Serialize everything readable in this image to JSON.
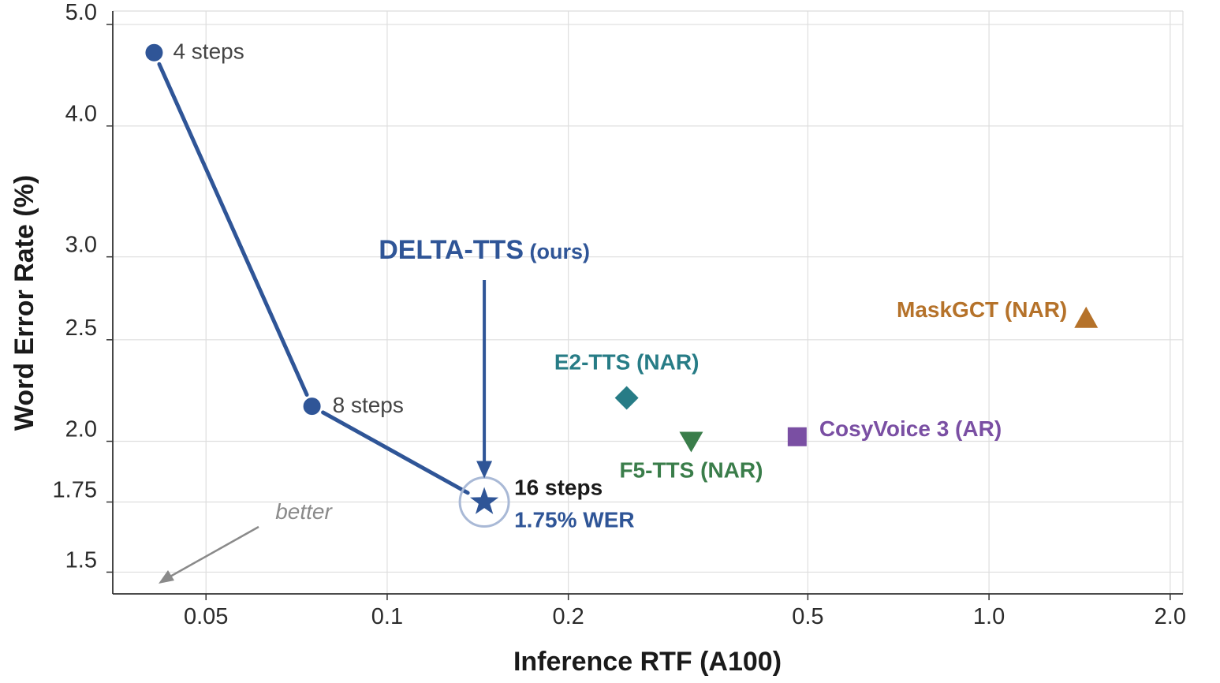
{
  "chart_data": {
    "type": "scatter",
    "xscale": "log",
    "yscale": "log",
    "xlabel": "Inference RTF (A100)",
    "ylabel": "Word Error Rate (%)",
    "xlim": [
      0.035,
      2.1
    ],
    "ylim": [
      1.43,
      5.15
    ],
    "grid": true,
    "x_ticks": [
      {
        "value": 0.05,
        "label": "0.05"
      },
      {
        "value": 0.1,
        "label": "0.1"
      },
      {
        "value": 0.2,
        "label": "0.2"
      },
      {
        "value": 0.5,
        "label": "0.5"
      },
      {
        "value": 1.0,
        "label": "1.0"
      },
      {
        "value": 2.0,
        "label": "2.0"
      }
    ],
    "y_ticks": [
      {
        "value": 1.5,
        "label": "1.5"
      },
      {
        "value": 1.75,
        "label": "1.75"
      },
      {
        "value": 2.0,
        "label": "2.0"
      },
      {
        "value": 2.5,
        "label": "2.5"
      },
      {
        "value": 3.0,
        "label": "3.0"
      },
      {
        "value": 4.0,
        "label": "4.0"
      },
      {
        "value": 5.0,
        "label": "5.0"
      }
    ],
    "ours": {
      "name": "DELTA-TTS",
      "name_suffix": "(ours)",
      "color": "#2f5597",
      "points": [
        {
          "x": 0.041,
          "y": 4.7,
          "label": "4 steps"
        },
        {
          "x": 0.075,
          "y": 2.16,
          "label": "8 steps"
        },
        {
          "x": 0.145,
          "y": 1.75,
          "label": "16 steps",
          "sublabel": "1.75% WER"
        }
      ]
    },
    "baselines": [
      {
        "name": "E2-TTS (NAR)",
        "x": 0.25,
        "y": 2.2,
        "marker": "diamond",
        "color": "#277c86"
      },
      {
        "name": "F5-TTS (NAR)",
        "x": 0.32,
        "y": 2.0,
        "marker": "triangle-down",
        "color": "#3a7d4a"
      },
      {
        "name": "CosyVoice 3 (AR)",
        "x": 0.48,
        "y": 2.02,
        "marker": "square",
        "color": "#7a4fa3"
      },
      {
        "name": "MaskGCT (NAR)",
        "x": 1.45,
        "y": 2.62,
        "marker": "triangle-up",
        "color": "#b5722a"
      }
    ],
    "annotation": {
      "text": "better",
      "color": "#8a8a8a"
    }
  }
}
